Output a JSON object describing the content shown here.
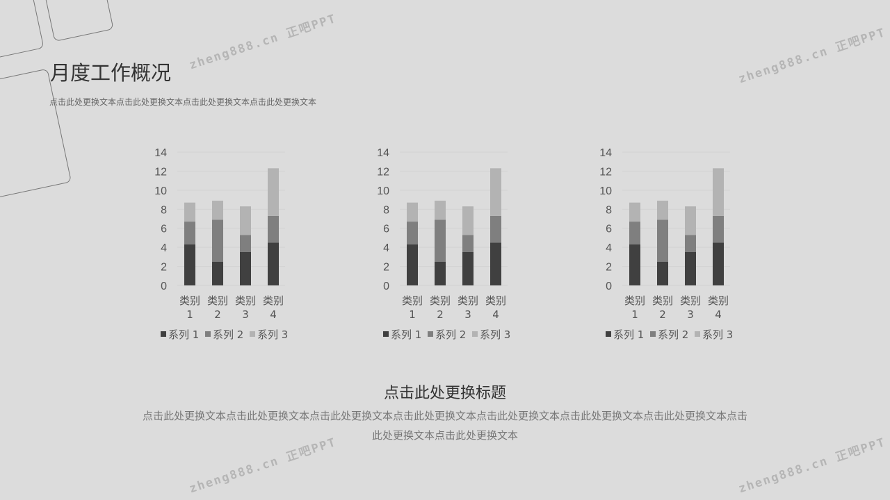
{
  "header": {
    "title": "月度工作概况",
    "subtitle": "点击此处更换文本点击此处更换文本点击此处更换文本点击此处更换文本"
  },
  "footer": {
    "title": "点击此处更换标题",
    "text": "点击此处更换文本点击此处更换文本点击此处更换文本点击此处更换文本点击此处更换文本点击此处更换文本点击此处更换文本点击此处更换文本点击此处更换文本"
  },
  "watermark": "zheng888.cn 正吧PPT",
  "colors": {
    "series1": "#404040",
    "series2": "#7f7f7f",
    "series3": "#b3b3b3",
    "background": "#dcdcdc"
  },
  "chart_data": [
    {
      "type": "bar",
      "stacked": true,
      "categories": [
        "类别 1",
        "类别 2",
        "类别 3",
        "类别 4"
      ],
      "series": [
        {
          "name": "系列 1",
          "values": [
            4.3,
            2.5,
            3.5,
            4.5
          ]
        },
        {
          "name": "系列 2",
          "values": [
            2.4,
            4.4,
            1.8,
            2.8
          ]
        },
        {
          "name": "系列 3",
          "values": [
            2,
            2,
            3,
            5
          ]
        }
      ],
      "yticks": [
        "0",
        "2",
        "4",
        "6",
        "8",
        "10",
        "12",
        "14"
      ],
      "ylim": [
        0,
        14
      ],
      "grid": true,
      "legend": "bottom"
    },
    {
      "type": "bar",
      "stacked": true,
      "categories": [
        "类别 1",
        "类别 2",
        "类别 3",
        "类别 4"
      ],
      "series": [
        {
          "name": "系列 1",
          "values": [
            4.3,
            2.5,
            3.5,
            4.5
          ]
        },
        {
          "name": "系列 2",
          "values": [
            2.4,
            4.4,
            1.8,
            2.8
          ]
        },
        {
          "name": "系列 3",
          "values": [
            2,
            2,
            3,
            5
          ]
        }
      ],
      "yticks": [
        "0",
        "2",
        "4",
        "6",
        "8",
        "10",
        "12",
        "14"
      ],
      "ylim": [
        0,
        14
      ],
      "grid": true,
      "legend": "bottom"
    },
    {
      "type": "bar",
      "stacked": true,
      "categories": [
        "类别 1",
        "类别 2",
        "类别 3",
        "类别 4"
      ],
      "series": [
        {
          "name": "系列 1",
          "values": [
            4.3,
            2.5,
            3.5,
            4.5
          ]
        },
        {
          "name": "系列 2",
          "values": [
            2.4,
            4.4,
            1.8,
            2.8
          ]
        },
        {
          "name": "系列 3",
          "values": [
            2,
            2,
            3,
            5
          ]
        }
      ],
      "yticks": [
        "0",
        "2",
        "4",
        "6",
        "8",
        "10",
        "12",
        "14"
      ],
      "ylim": [
        0,
        14
      ],
      "grid": true,
      "legend": "bottom"
    }
  ]
}
